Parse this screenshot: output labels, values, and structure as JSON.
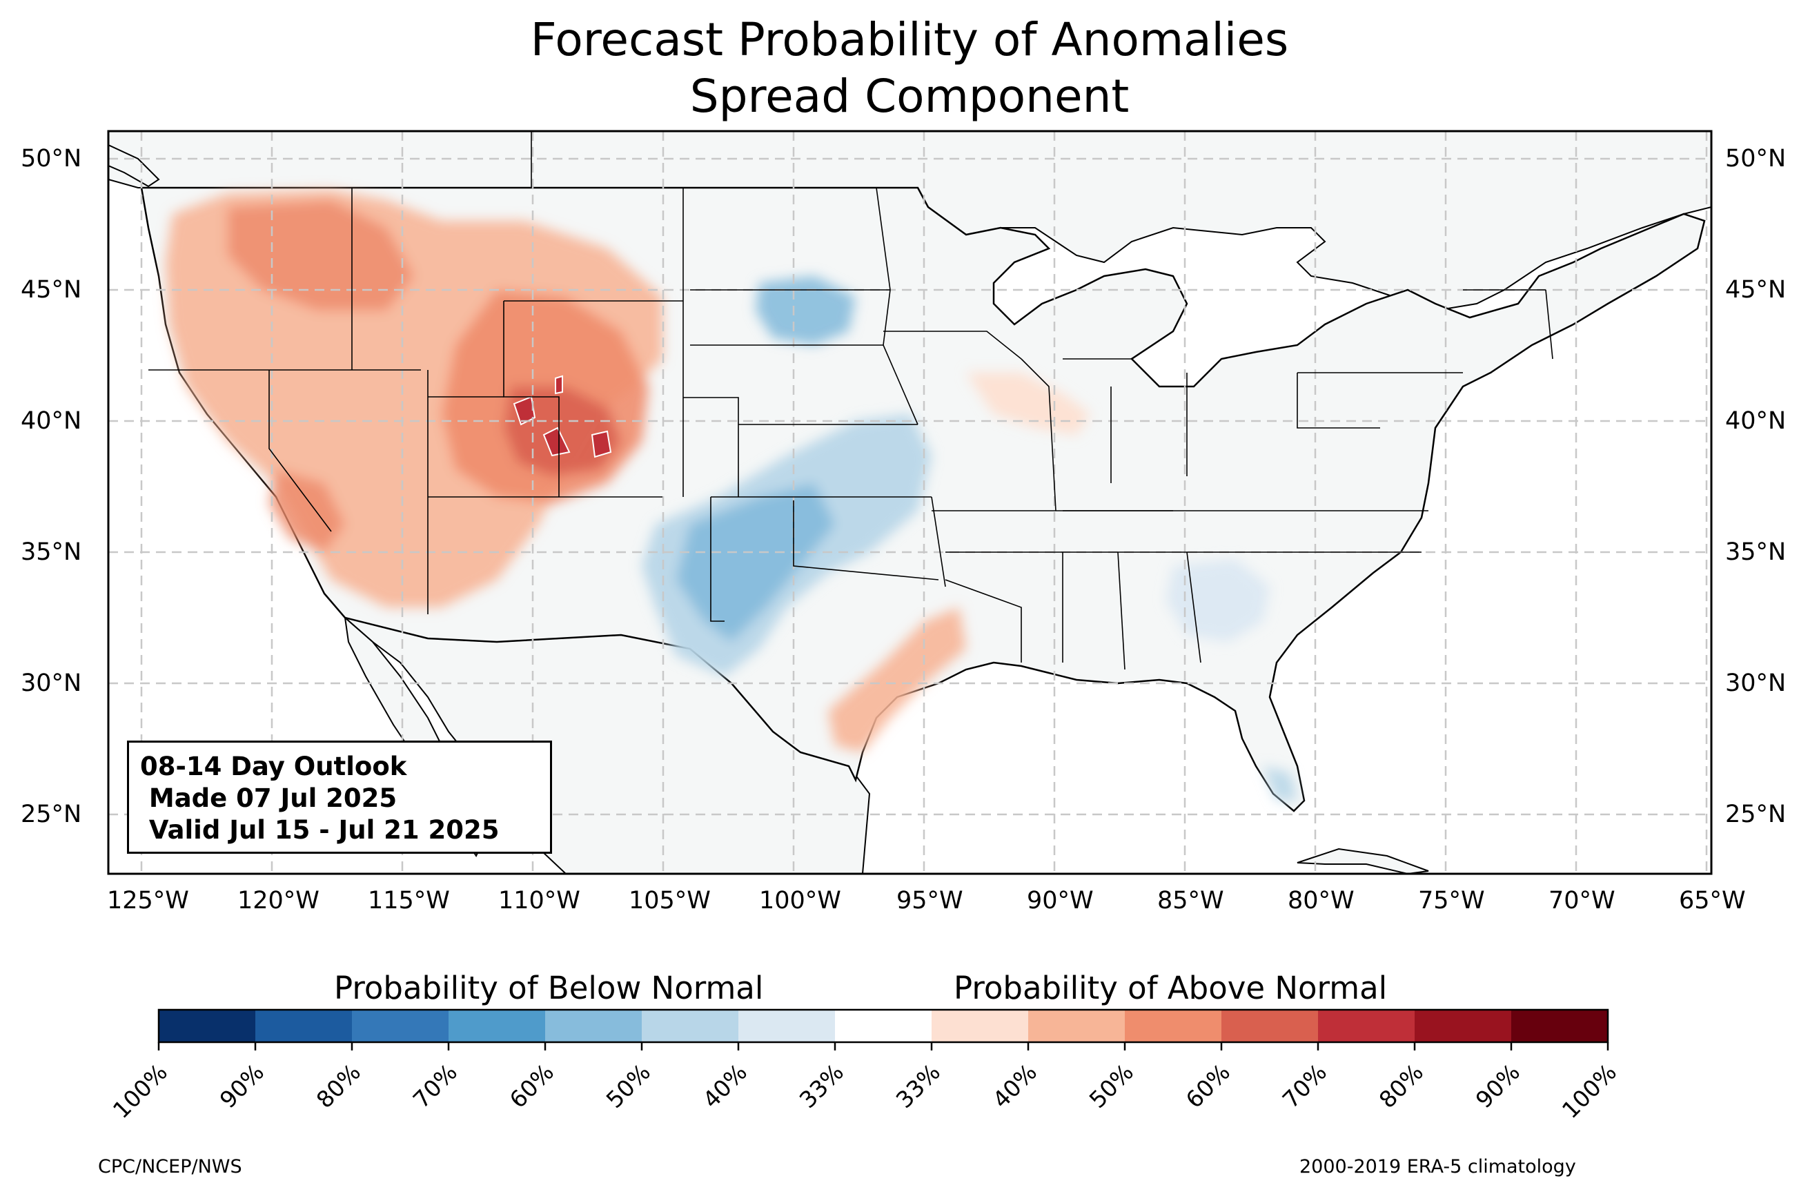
{
  "title_line1": "Forecast Probability of Anomalies",
  "title_line2": "Spread Component",
  "info_box": {
    "line1": "08-14 Day Outlook",
    "line2": " Made 07 Jul 2025",
    "line3": " Valid Jul 15 - Jul 21 2025"
  },
  "lat_labels": [
    "50°N",
    "45°N",
    "40°N",
    "35°N",
    "30°N",
    "25°N"
  ],
  "lon_labels": [
    "125°W",
    "120°W",
    "115°W",
    "110°W",
    "105°W",
    "100°W",
    "95°W",
    "90°W",
    "85°W",
    "80°W",
    "75°W",
    "70°W",
    "65°W"
  ],
  "colorbar": {
    "below_label": "Probability of Below Normal",
    "above_label": "Probability of Above Normal",
    "tick_labels": [
      "100%",
      "90%",
      "80%",
      "70%",
      "60%",
      "50%",
      "40%",
      "33%",
      "33%",
      "40%",
      "50%",
      "60%",
      "70%",
      "80%",
      "90%",
      "100%"
    ],
    "colors": [
      "#08306b",
      "#1c5b9f",
      "#3478b8",
      "#4f9bcb",
      "#87bcdc",
      "#b8d6e8",
      "#dbe8f2",
      "#ffffff",
      "#fde0d2",
      "#f7b597",
      "#ef8d6d",
      "#d9604f",
      "#bf2f38",
      "#99131f",
      "#67000d"
    ]
  },
  "footer_left": "CPC/NCEP/NWS",
  "footer_right": "2000-2019 ERA-5 climatology",
  "map_extent": {
    "lon_min": -126.5,
    "lon_max": -65.0,
    "lat_min": 22.8,
    "lat_max": 51.2
  },
  "anomaly_regions": [
    {
      "name": "west-above",
      "category": "above",
      "level": "40-50%"
    },
    {
      "name": "rockies-above",
      "category": "above",
      "level": "50-60%"
    },
    {
      "name": "colorado-wyoming-above",
      "category": "above",
      "level": "60-70%"
    },
    {
      "name": "south-dakota-below",
      "category": "below",
      "level": "40-50%"
    },
    {
      "name": "southern-plains-below",
      "category": "below",
      "level": "50-60%"
    },
    {
      "name": "texas-coast-above",
      "category": "above",
      "level": "40-50%"
    },
    {
      "name": "southeast-below",
      "category": "below",
      "level": "33-40%"
    },
    {
      "name": "illinois-above",
      "category": "above",
      "level": "33-40%"
    }
  ]
}
